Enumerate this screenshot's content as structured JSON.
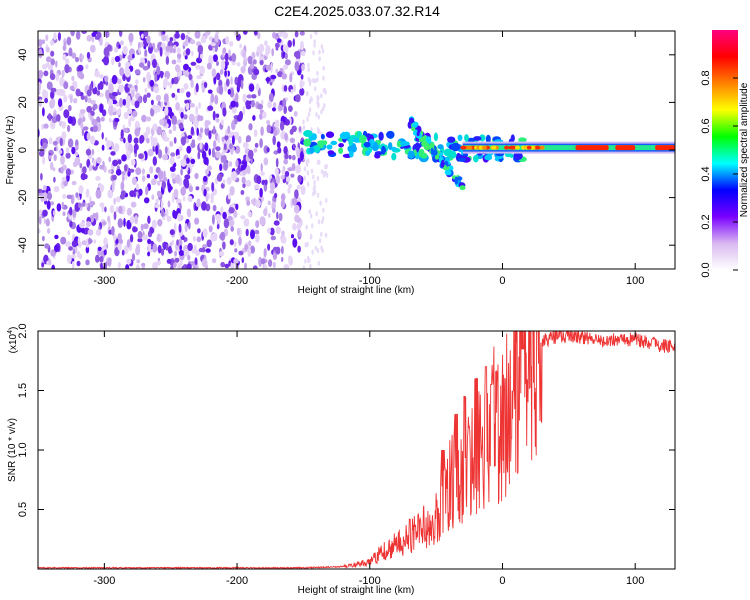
{
  "title": "C2E4.2025.033.07.32.R14",
  "chart_data": [
    {
      "type": "heatmap",
      "xlabel": "Height of straight line (km)",
      "ylabel": "Frequency (Hz)",
      "xlim": [
        -350,
        130
      ],
      "ylim": [
        -50,
        50
      ],
      "xticks": [
        "-300",
        "-200",
        "-100",
        "0",
        "100"
      ],
      "yticks": [
        "-40",
        "-20",
        "0",
        "20",
        "40"
      ],
      "colorbar": {
        "label": "Normalized spectral amplitude",
        "range": [
          0,
          1
        ],
        "ticks": [
          "0.0",
          "0.2",
          "0.4",
          "0.6",
          "0.8"
        ],
        "colors": [
          "#ffffff",
          "#d9b8f0",
          "#7a00ff",
          "#0000ff",
          "#00ffff",
          "#00ff00",
          "#ffff00",
          "#ff8000",
          "#ff0000",
          "#ff0080"
        ]
      },
      "features": {
        "noise_region_x": [
          -350,
          -150
        ],
        "dot_band": {
          "x": [
            -150,
            20
          ],
          "center_freq": [
            3,
            0
          ]
        },
        "spiky_feature": {
          "x": [
            -70,
            -30
          ],
          "freq": [
            12,
            -15
          ]
        },
        "steady_carrier": {
          "x": [
            -30,
            130
          ],
          "freq": 1,
          "max_amplitude_segments_x": [
            [
              55,
              80
            ],
            [
              85,
              100
            ],
            [
              115,
              130
            ]
          ]
        }
      }
    },
    {
      "type": "line",
      "xlabel": "Height of straight line (km)",
      "ylabel": "SNR (10 * v/v)",
      "y_multiplier": "(x10",
      "y_multiplier_exp": "4",
      "y_multiplier_close": ")",
      "xlim": [
        -350,
        130
      ],
      "ylim": [
        0,
        2.0
      ],
      "xticks": [
        "-300",
        "-200",
        "-100",
        "0",
        "100"
      ],
      "yticks": [
        "0.5",
        "1.0",
        "1.5",
        "2.0"
      ],
      "color": "#ee3333",
      "series": [
        {
          "x": [
            -350,
            -300,
            -250,
            -200,
            -150,
            -120,
            -100,
            -90,
            -80,
            -70,
            -60,
            -50,
            -45,
            -40,
            -35,
            -30,
            -25,
            -20,
            -15,
            -10,
            -5,
            0,
            5,
            10,
            15,
            20,
            25,
            30,
            40,
            50,
            60,
            70,
            80,
            90,
            100,
            110,
            120,
            130
          ],
          "values": [
            0.01,
            0.01,
            0.01,
            0.01,
            0.01,
            0.02,
            0.06,
            0.15,
            0.2,
            0.28,
            0.35,
            0.45,
            0.6,
            0.7,
            0.8,
            0.7,
            0.85,
            1.0,
            1.1,
            1.2,
            1.3,
            1.0,
            1.45,
            1.6,
            1.75,
            1.85,
            1.9,
            1.92,
            1.95,
            1.96,
            1.95,
            1.92,
            1.92,
            1.93,
            1.93,
            1.9,
            1.88,
            1.85
          ],
          "noise_peaks": {
            "x": [
              -45,
              -35,
              -28,
              -20,
              -12,
              -8,
              0,
              8,
              15
            ],
            "values": [
              1.0,
              1.3,
              1.45,
              1.6,
              1.7,
              1.55,
              1.8,
              1.5,
              1.85
            ]
          }
        }
      ]
    }
  ]
}
